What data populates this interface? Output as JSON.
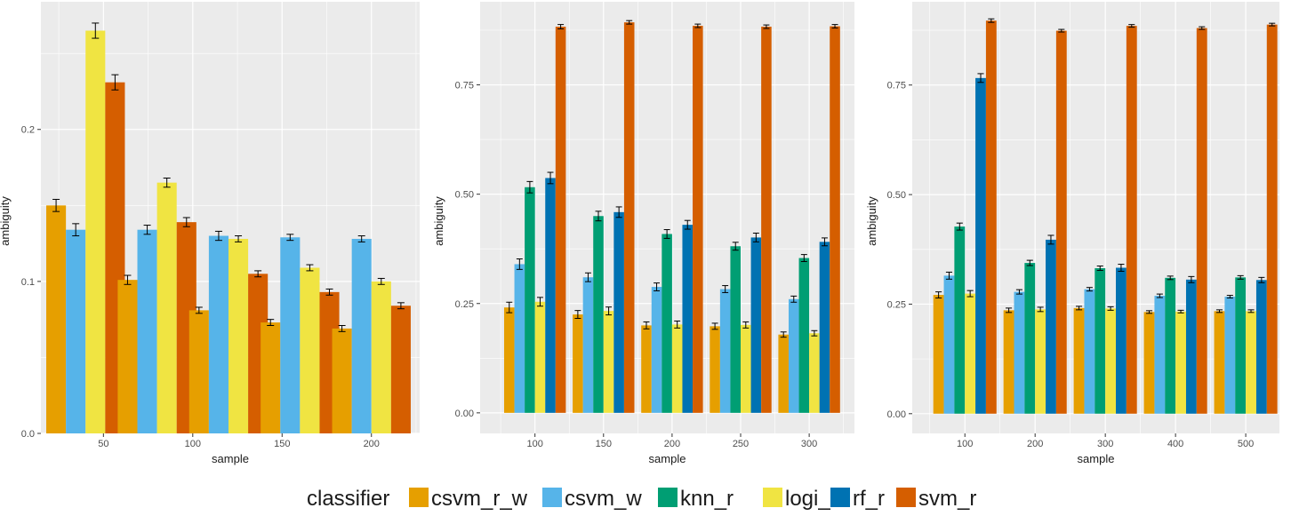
{
  "legend": {
    "title": "classifier",
    "entries": [
      {
        "name": "csvm_r_w",
        "color": "#E69F00"
      },
      {
        "name": "csvm_w",
        "color": "#56B4E9"
      },
      {
        "name": "knn_r",
        "color": "#009E73"
      },
      {
        "name": "logi_r",
        "color": "#F0E442"
      },
      {
        "name": "rf_r",
        "color": "#0072B2"
      },
      {
        "name": "svm_r",
        "color": "#D55E00"
      }
    ]
  },
  "chart_data": [
    {
      "type": "bar",
      "xlabel": "sample",
      "ylabel": "ambiguity",
      "xlim": [
        15,
        227
      ],
      "ylim": [
        0,
        0.284
      ],
      "x_ticks": [
        50,
        100,
        150,
        200
      ],
      "y_ticks": [
        0.0,
        0.1,
        0.2
      ],
      "y_tick_labels": [
        "0.0",
        "0.1",
        "0.2"
      ],
      "bar_width": 44,
      "categories": [
        40,
        80,
        120,
        160,
        200
      ],
      "series": [
        {
          "name": "csvm_r_w",
          "values": [
            0.15,
            0.101,
            0.081,
            0.073,
            0.069
          ],
          "errors": [
            0.004,
            0.003,
            0.002,
            0.002,
            0.002
          ]
        },
        {
          "name": "csvm_w",
          "values": [
            0.134,
            0.134,
            0.13,
            0.129,
            0.128
          ],
          "errors": [
            0.004,
            0.003,
            0.003,
            0.002,
            0.002
          ]
        },
        {
          "name": "logi_r",
          "values": [
            0.265,
            0.165,
            0.128,
            0.109,
            0.1
          ],
          "errors": [
            0.005,
            0.003,
            0.002,
            0.002,
            0.002
          ]
        },
        {
          "name": "svm_r",
          "values": [
            0.231,
            0.139,
            0.105,
            0.093,
            0.084
          ],
          "errors": [
            0.005,
            0.003,
            0.002,
            0.002,
            0.002
          ]
        }
      ]
    },
    {
      "type": "bar",
      "xlabel": "sample",
      "ylabel": "ambiguity",
      "xlim": [
        60,
        333
      ],
      "ylim": [
        -0.047,
        0.94
      ],
      "x_ticks": [
        100,
        150,
        200,
        250,
        300
      ],
      "y_ticks": [
        0.0,
        0.25,
        0.5,
        0.75
      ],
      "y_tick_labels": [
        "0.00",
        "0.25",
        "0.50",
        "0.75"
      ],
      "bar_width": 45,
      "categories": [
        100,
        150,
        200,
        250,
        300
      ],
      "series": [
        {
          "name": "csvm_r_w",
          "values": [
            0.241,
            0.225,
            0.2,
            0.198,
            0.179
          ],
          "errors": [
            0.012,
            0.009,
            0.008,
            0.007,
            0.006
          ]
        },
        {
          "name": "csvm_w",
          "values": [
            0.34,
            0.31,
            0.288,
            0.283,
            0.26
          ],
          "errors": [
            0.012,
            0.01,
            0.009,
            0.008,
            0.007
          ]
        },
        {
          "name": "knn_r",
          "values": [
            0.516,
            0.45,
            0.409,
            0.381,
            0.354
          ],
          "errors": [
            0.013,
            0.011,
            0.01,
            0.009,
            0.008
          ]
        },
        {
          "name": "logi_r",
          "values": [
            0.254,
            0.233,
            0.202,
            0.201,
            0.182
          ],
          "errors": [
            0.01,
            0.009,
            0.008,
            0.007,
            0.006
          ]
        },
        {
          "name": "rf_r",
          "values": [
            0.537,
            0.459,
            0.43,
            0.401,
            0.391
          ],
          "errors": [
            0.013,
            0.012,
            0.01,
            0.01,
            0.009
          ]
        },
        {
          "name": "svm_r",
          "values": [
            0.883,
            0.893,
            0.885,
            0.883,
            0.884
          ],
          "errors": [
            0.005,
            0.004,
            0.004,
            0.004,
            0.004
          ]
        }
      ]
    },
    {
      "type": "bar",
      "xlabel": "sample",
      "ylabel": "ambiguity",
      "xlim": [
        25,
        548
      ],
      "ylim": [
        -0.045,
        0.94
      ],
      "x_ticks": [
        100,
        200,
        300,
        400,
        500
      ],
      "y_ticks": [
        0.0,
        0.25,
        0.5,
        0.75
      ],
      "y_tick_labels": [
        "0.00",
        "0.25",
        "0.50",
        "0.75"
      ],
      "bar_width": 90,
      "categories": [
        100,
        200,
        300,
        400,
        500
      ],
      "series": [
        {
          "name": "csvm_r_w",
          "values": [
            0.271,
            0.236,
            0.241,
            0.232,
            0.234
          ],
          "errors": [
            0.007,
            0.005,
            0.004,
            0.003,
            0.003
          ]
        },
        {
          "name": "csvm_w",
          "values": [
            0.315,
            0.278,
            0.284,
            0.269,
            0.267
          ],
          "errors": [
            0.008,
            0.005,
            0.004,
            0.004,
            0.003
          ]
        },
        {
          "name": "knn_r",
          "values": [
            0.427,
            0.344,
            0.332,
            0.31,
            0.311
          ],
          "errors": [
            0.008,
            0.006,
            0.005,
            0.004,
            0.004
          ]
        },
        {
          "name": "logi_r",
          "values": [
            0.274,
            0.238,
            0.24,
            0.233,
            0.234
          ],
          "errors": [
            0.007,
            0.005,
            0.004,
            0.003,
            0.003
          ]
        },
        {
          "name": "rf_r",
          "values": [
            0.766,
            0.397,
            0.333,
            0.306,
            0.305
          ],
          "errors": [
            0.01,
            0.01,
            0.008,
            0.007,
            0.006
          ]
        },
        {
          "name": "svm_r",
          "values": [
            0.897,
            0.874,
            0.885,
            0.88,
            0.888
          ],
          "errors": [
            0.004,
            0.003,
            0.003,
            0.003,
            0.003
          ]
        }
      ]
    }
  ]
}
